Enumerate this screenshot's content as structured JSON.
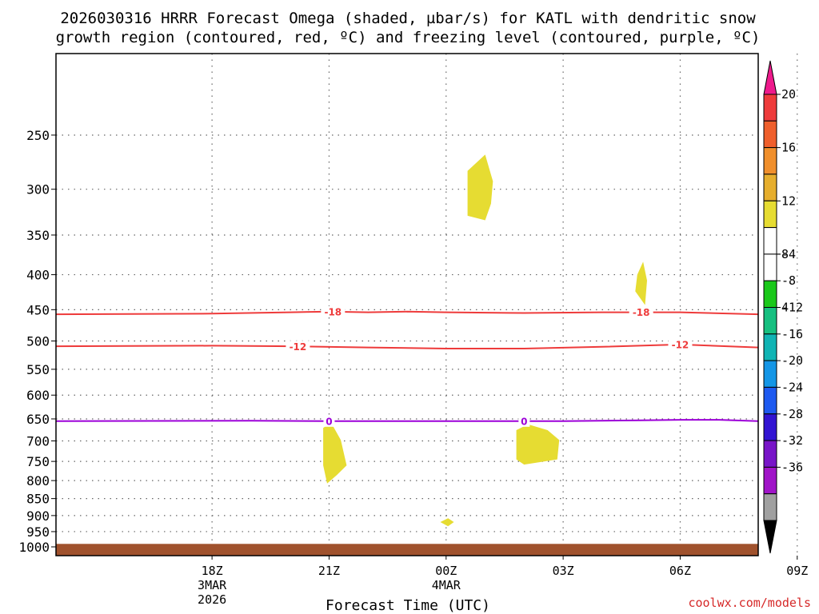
{
  "chart_data": {
    "type": "time-pressure cross-section",
    "title_line1": "2026030316 HRRR Forecast Omega (shaded, µbar/s) for KATL with dendritic snow",
    "title_line2": "growth region (contoured, red, ºC) and freezing level (contoured, purple, ºC)",
    "xlabel": "Forecast Time (UTC)",
    "credit": "coolwx.com/models",
    "x_range_hours": [
      -2,
      16
    ],
    "x_ticks": [
      {
        "hour": 2,
        "label": "18Z",
        "sub1": "3MAR",
        "sub2": "2026"
      },
      {
        "hour": 5,
        "label": "21Z",
        "sub1": "",
        "sub2": ""
      },
      {
        "hour": 8,
        "label": "00Z",
        "sub1": "4MAR",
        "sub2": ""
      },
      {
        "hour": 11,
        "label": "03Z",
        "sub1": "",
        "sub2": ""
      },
      {
        "hour": 14,
        "label": "06Z",
        "sub1": "",
        "sub2": ""
      },
      {
        "hour": 17,
        "label": "09Z",
        "sub1": "",
        "sub2": ""
      }
    ],
    "y_range_hpa": [
      1030,
      190
    ],
    "y_ticks": [
      250,
      300,
      350,
      400,
      450,
      500,
      550,
      600,
      650,
      700,
      750,
      800,
      850,
      900,
      950,
      1000
    ],
    "ground_level_hpa": 990,
    "omega_areas": [
      {
        "name": "omega-area-300",
        "points": [
          [
            8.55,
            282
          ],
          [
            9.0,
            267
          ],
          [
            9.2,
            292
          ],
          [
            9.15,
            315
          ],
          [
            9.0,
            333
          ],
          [
            8.55,
            328
          ]
        ]
      },
      {
        "name": "omega-area-420",
        "points": [
          [
            12.9,
            400
          ],
          [
            13.05,
            383
          ],
          [
            13.15,
            408
          ],
          [
            13.1,
            443
          ],
          [
            12.85,
            423
          ]
        ]
      },
      {
        "name": "omega-area-720-a",
        "points": [
          [
            4.85,
            670
          ],
          [
            5.05,
            658
          ],
          [
            5.3,
            698
          ],
          [
            5.45,
            760
          ],
          [
            5.2,
            785
          ],
          [
            4.95,
            808
          ],
          [
            4.85,
            760
          ]
        ]
      },
      {
        "name": "omega-area-720-b",
        "points": [
          [
            9.8,
            675
          ],
          [
            10.1,
            662
          ],
          [
            10.6,
            675
          ],
          [
            10.9,
            698
          ],
          [
            10.85,
            745
          ],
          [
            10.0,
            758
          ],
          [
            9.8,
            745
          ]
        ]
      },
      {
        "name": "omega-area-920",
        "points": [
          [
            7.85,
            920
          ],
          [
            8.05,
            908
          ],
          [
            8.2,
            920
          ],
          [
            8.05,
            933
          ]
        ]
      }
    ],
    "omega_fill_color": "#e6dc32",
    "contours": [
      {
        "name": "contour-minus-18",
        "label": "-18",
        "color": "#ee3b3b",
        "points": [
          [
            -2,
            457
          ],
          [
            2,
            456
          ],
          [
            4,
            454
          ],
          [
            5,
            453
          ],
          [
            6,
            454
          ],
          [
            7,
            453
          ],
          [
            8,
            454
          ],
          [
            10,
            455
          ],
          [
            12,
            454
          ],
          [
            14,
            454
          ],
          [
            16,
            457
          ]
        ],
        "label_hours": [
          5.1,
          13.0
        ]
      },
      {
        "name": "contour-minus-12",
        "label": "-12",
        "color": "#ee3b3b",
        "points": [
          [
            -2,
            509
          ],
          [
            2,
            508
          ],
          [
            4,
            509
          ],
          [
            6,
            511
          ],
          [
            8,
            513
          ],
          [
            10,
            513
          ],
          [
            12,
            510
          ],
          [
            14,
            506
          ],
          [
            16,
            511
          ]
        ],
        "label_hours": [
          4.2,
          14.0
        ]
      },
      {
        "name": "contour-zero",
        "label": "0",
        "color": "#9c00d8",
        "points": [
          [
            -2,
            655
          ],
          [
            3,
            654
          ],
          [
            5,
            655
          ],
          [
            8,
            655
          ],
          [
            11,
            655
          ],
          [
            13,
            653
          ],
          [
            14,
            652
          ],
          [
            15,
            652
          ],
          [
            16,
            655
          ]
        ],
        "label_hours": [
          5.0,
          10.0
        ]
      }
    ],
    "colorbar": {
      "labels": [
        "20",
        "16",
        "12",
        "8",
        "4",
        "-4",
        "-8",
        "-12",
        "-16",
        "-20",
        "-24",
        "-28",
        "-32",
        "-36"
      ],
      "top_color": "#ee1a8c",
      "bottom_color": "#000000",
      "colors": [
        "#ee3b3b",
        "#ef5f2c",
        "#f08f2c",
        "#e6ae2d",
        "#e6dc32",
        "#ffffff",
        "#ffffff",
        "#1ac81a",
        "#16c080",
        "#10b4b4",
        "#1496e6",
        "#1e5af0",
        "#3214d2",
        "#7814c8",
        "#a014c8",
        "#a0a0a0"
      ]
    }
  }
}
